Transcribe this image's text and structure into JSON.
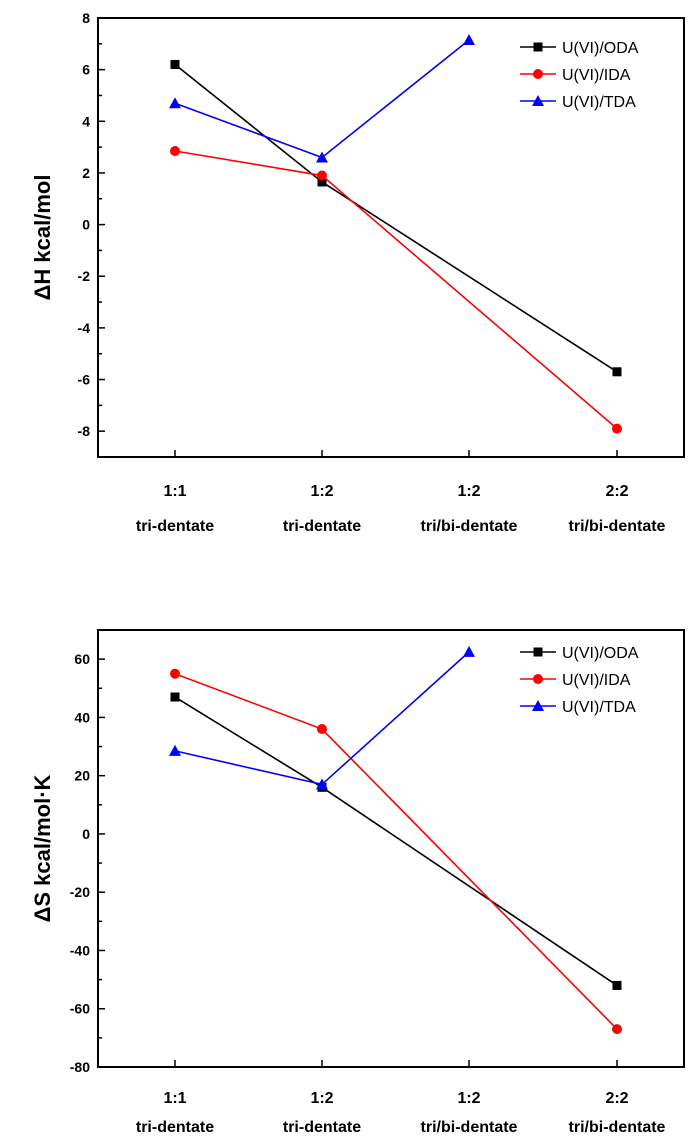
{
  "chart_data": [
    {
      "type": "line",
      "categories": [
        "1:1",
        "1:2",
        "1:2",
        "2:2"
      ],
      "subcategories": [
        "tri-dentate",
        "tri-dentate",
        "tri/bi-dentate",
        "tri/bi-dentate"
      ],
      "ylabel": "ΔH  kcal/mol",
      "ylim": [
        -9,
        8
      ],
      "yticks": [
        8,
        6,
        4,
        2,
        0,
        -2,
        -4,
        -6,
        -8
      ],
      "legend_position": "top-right",
      "series": [
        {
          "name": "U(VI)/ODA",
          "color": "#000000",
          "marker": "square",
          "values": [
            6.2,
            1.65,
            null,
            -5.7
          ]
        },
        {
          "name": "U(VI)/IDA",
          "color": "#ff0000",
          "marker": "circle",
          "values": [
            2.85,
            1.9,
            null,
            -7.9
          ]
        },
        {
          "name": "U(VI)/TDA",
          "color": "#0000ff",
          "marker": "triangle",
          "values": [
            4.7,
            2.6,
            7.15,
            null
          ]
        }
      ]
    },
    {
      "type": "line",
      "categories": [
        "1:1",
        "1:2",
        "1:2",
        "2:2"
      ],
      "subcategories": [
        "tri-dentate",
        "tri-dentate",
        "tri/bi-dentate",
        "tri/bi-dentate"
      ],
      "ylabel": "ΔS  kcal/mol·K",
      "ylim": [
        -80,
        70
      ],
      "yticks": [
        60,
        40,
        20,
        0,
        -20,
        -40,
        -60,
        -80
      ],
      "legend_position": "top-right",
      "series": [
        {
          "name": "U(VI)/ODA",
          "color": "#000000",
          "marker": "square",
          "values": [
            47,
            16,
            null,
            -52
          ]
        },
        {
          "name": "U(VI)/IDA",
          "color": "#ff0000",
          "marker": "circle",
          "values": [
            55,
            36,
            null,
            -67
          ]
        },
        {
          "name": "U(VI)/TDA",
          "color": "#0000ff",
          "marker": "triangle",
          "values": [
            28.5,
            17,
            62.5,
            null
          ]
        }
      ]
    }
  ]
}
